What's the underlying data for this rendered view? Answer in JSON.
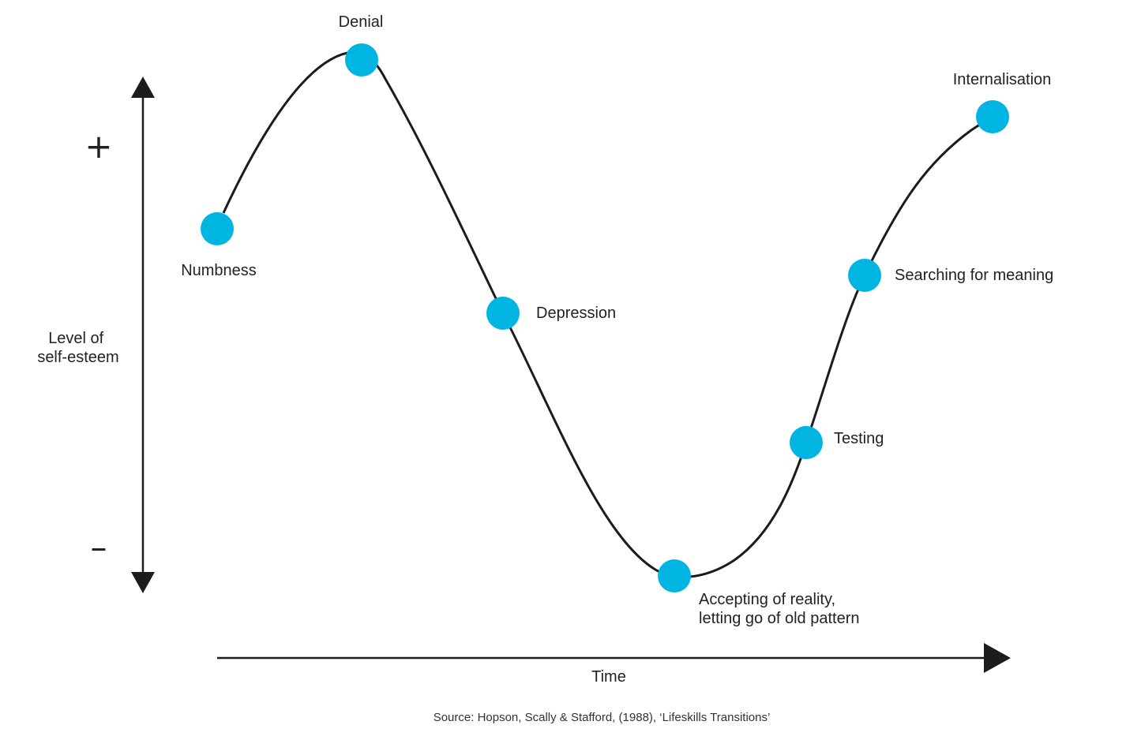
{
  "y_axis": {
    "label_lines": [
      "Level of",
      "self-esteem"
    ],
    "plus_sign": "+",
    "minus_sign": "–"
  },
  "x_axis": {
    "label": "Time"
  },
  "stages": [
    {
      "key": "numbness",
      "lines": [
        "Numbness"
      ]
    },
    {
      "key": "denial",
      "lines": [
        "Denial"
      ]
    },
    {
      "key": "depression",
      "lines": [
        "Depression"
      ]
    },
    {
      "key": "accepting",
      "lines": [
        "Accepting of reality,",
        "letting go of old pattern"
      ]
    },
    {
      "key": "testing",
      "lines": [
        "Testing"
      ]
    },
    {
      "key": "searching",
      "lines": [
        "Searching for meaning"
      ]
    },
    {
      "key": "internalisation",
      "lines": [
        "Internalisation"
      ]
    }
  ],
  "source": "Source: Hopson, Scally & Stafford, (1988), ‘Lifeskills Transitions’",
  "colors": {
    "marker": "#00B5E2",
    "line": "#1c1c1c"
  }
}
